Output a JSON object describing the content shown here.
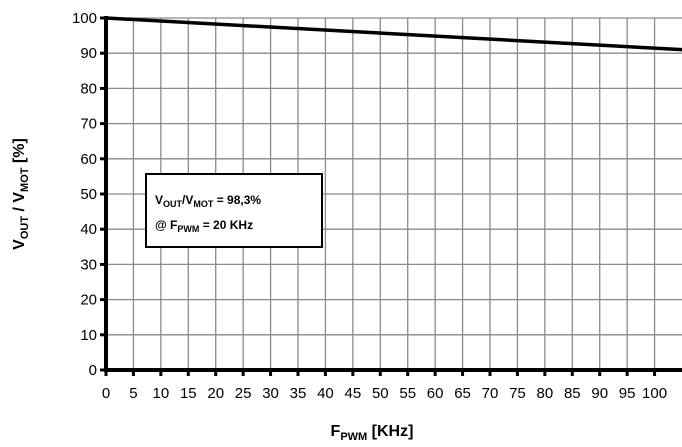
{
  "chart_data": {
    "type": "line",
    "xlabel": {
      "main": "F",
      "sub": "PWM",
      "unit": " [KHz]"
    },
    "ylabel": {
      "p1": "V",
      "s1": "OUT",
      "p2": " / V",
      "s2": "MOT",
      "unit": " [%]"
    },
    "xlim": [
      0,
      105
    ],
    "ylim": [
      0,
      100
    ],
    "x_ticks": [
      0,
      5,
      10,
      15,
      20,
      25,
      30,
      35,
      40,
      45,
      50,
      55,
      60,
      65,
      70,
      75,
      80,
      85,
      90,
      95,
      100
    ],
    "y_ticks": [
      0,
      10,
      20,
      30,
      40,
      50,
      60,
      70,
      80,
      90,
      100
    ],
    "grid": true,
    "series": [
      {
        "x": [
          0,
          105
        ],
        "y": [
          100,
          91
        ],
        "color": "#000000"
      }
    ],
    "annotation": {
      "line1": {
        "p1": "V",
        "s1": "OUT",
        "p2": "/V",
        "s2": "MOT",
        "rest": " = 98,3%"
      },
      "line2": {
        "p1": "@ F",
        "s1": "PWM",
        "rest": " = 20 KHz"
      }
    }
  }
}
